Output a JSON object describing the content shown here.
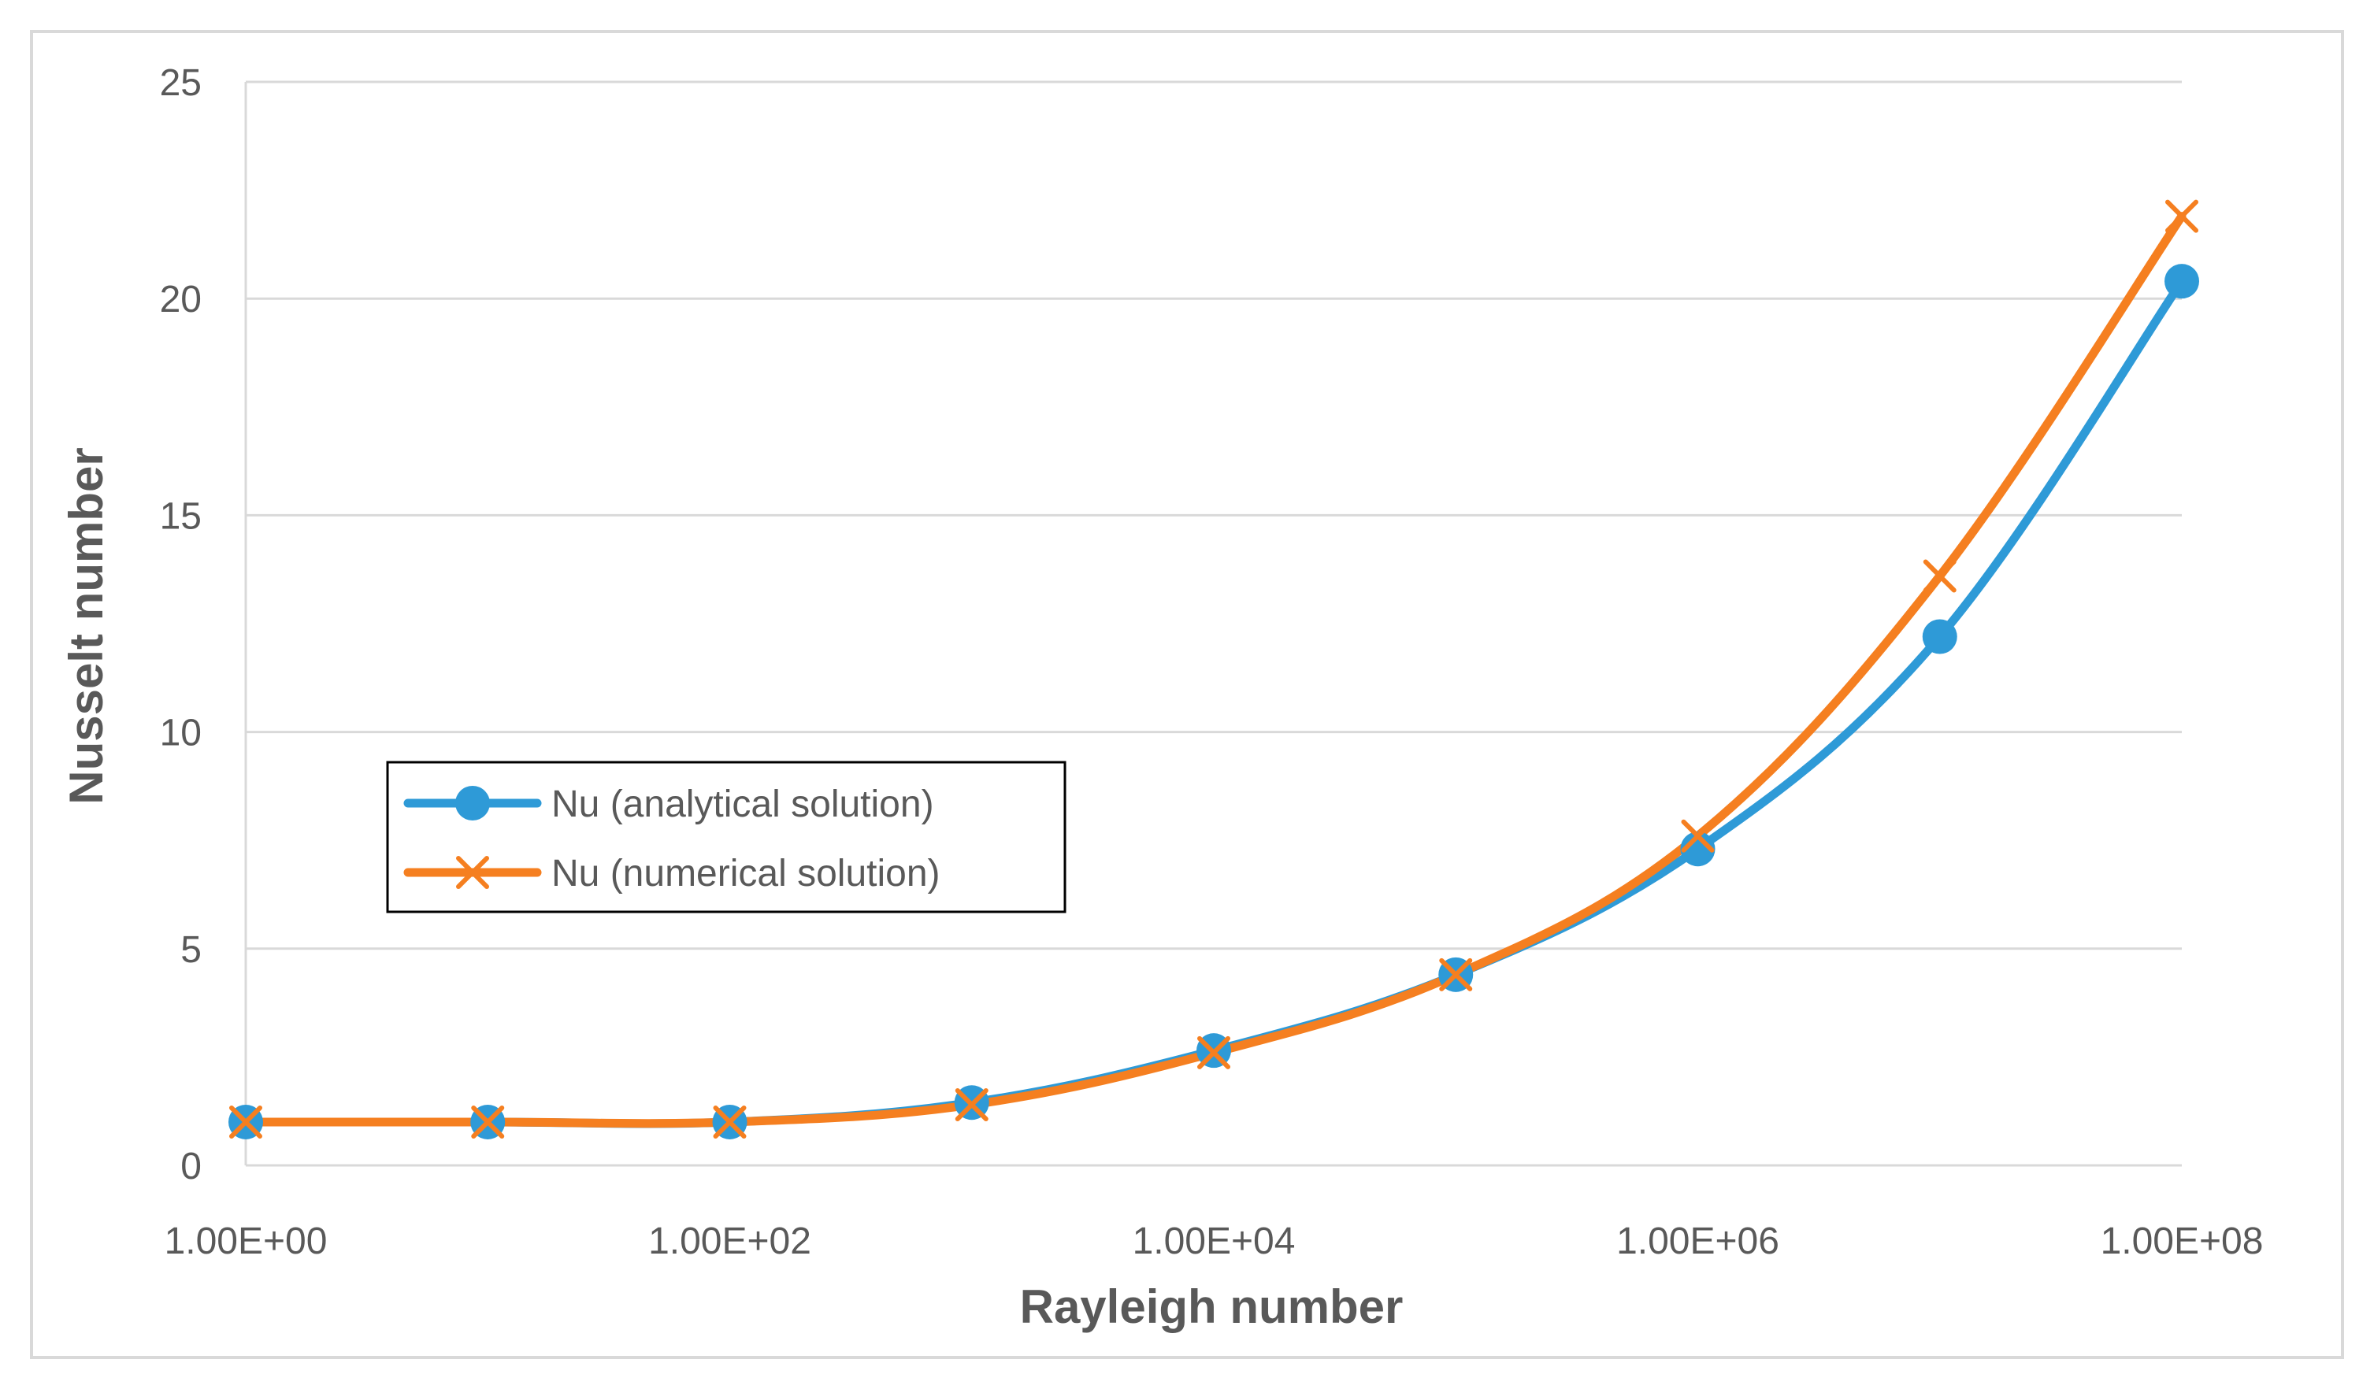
{
  "chart_data": {
    "type": "line",
    "title": "",
    "xlabel": "Rayleigh number",
    "ylabel": "Nusselt number",
    "x_scale": "log",
    "x": [
      1,
      10,
      100,
      1000,
      10000,
      100000,
      1000000,
      10000000,
      100000000
    ],
    "x_tick_values": [
      1,
      100,
      10000,
      1000000,
      100000000
    ],
    "x_tick_labels": [
      "1.00E+00",
      "1.00E+02",
      "1.00E+04",
      "1.00E+06",
      "1.00E+08"
    ],
    "y_ticks": [
      0,
      5,
      10,
      15,
      20,
      25
    ],
    "ylim": [
      0,
      25
    ],
    "grid": "horizontal",
    "legend_position": "middle-left",
    "series": [
      {
        "name": "Nu (analytical solution)",
        "color": "#2E9AD7",
        "marker": "circle",
        "values": [
          1.0,
          1.0,
          1.0,
          1.45,
          2.65,
          4.4,
          7.3,
          12.2,
          20.4
        ]
      },
      {
        "name": "Nu (numerical solution)",
        "color": "#F57F20",
        "marker": "x",
        "values": [
          1.0,
          1.0,
          1.0,
          1.4,
          2.6,
          4.4,
          7.6,
          13.6,
          21.9
        ]
      }
    ]
  }
}
